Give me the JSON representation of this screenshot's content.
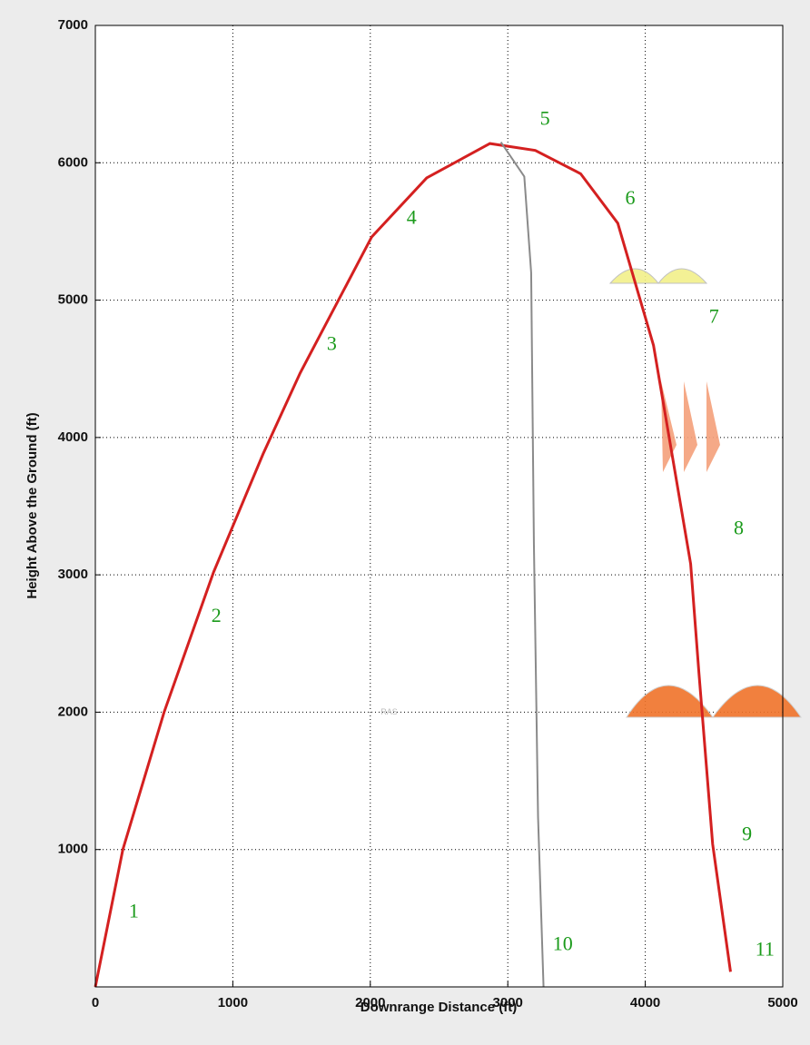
{
  "chart_data": {
    "type": "line",
    "xlabel": "Downrange Distance (ft)",
    "ylabel": "Height Above the Ground (ft)",
    "xlim": [
      0,
      5000
    ],
    "xticks": [
      0,
      1000,
      2000,
      3000,
      4000,
      5000
    ],
    "ylim": [
      0,
      7000
    ],
    "yticks": [
      1000,
      2000,
      3000,
      4000,
      5000,
      6000,
      7000
    ],
    "grid": true,
    "series": [
      {
        "color": "#d42020",
        "x": [
          0,
          200,
          500,
          860,
          1220,
          1490,
          2010,
          2410,
          2870,
          3200,
          3530,
          3800,
          4060,
          4330,
          4390,
          4490,
          4620
        ],
        "values": [
          0,
          1000,
          2000,
          3020,
          3880,
          4470,
          5460,
          5890,
          6140,
          6090,
          5920,
          5560,
          4670,
          3080,
          2290,
          1040,
          110
        ]
      },
      {
        "color": "#8a8a8a",
        "x": [
          2950,
          3120,
          3170,
          3190,
          3220,
          3260
        ],
        "values": [
          6150,
          5900,
          5200,
          3220,
          1240,
          0
        ]
      }
    ],
    "annotations": [
      {
        "text": "1",
        "x": 280,
        "y": 540
      },
      {
        "text": "2",
        "x": 880,
        "y": 2690
      },
      {
        "text": "3",
        "x": 1720,
        "y": 4670
      },
      {
        "text": "4",
        "x": 2300,
        "y": 5590
      },
      {
        "text": "5",
        "x": 3270,
        "y": 6310
      },
      {
        "text": "6",
        "x": 3890,
        "y": 5730
      },
      {
        "text": "7",
        "x": 4500,
        "y": 4870
      },
      {
        "text": "8",
        "x": 4680,
        "y": 3330
      },
      {
        "text": "9",
        "x": 4740,
        "y": 1100
      },
      {
        "text": "10",
        "x": 3400,
        "y": 300
      },
      {
        "text": "11",
        "x": 4870,
        "y": 260
      }
    ],
    "annotation_color": "#1a9a1a",
    "watermark": "RAS"
  }
}
